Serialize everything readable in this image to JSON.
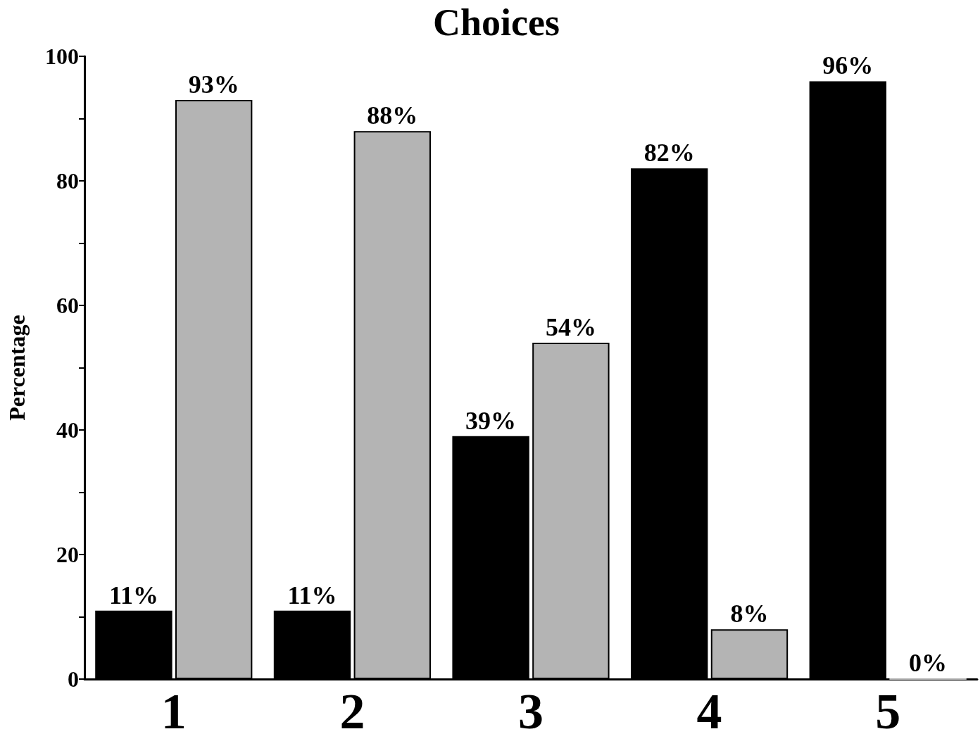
{
  "chart_data": {
    "type": "bar",
    "title": "Choices",
    "ylabel": "Percentage",
    "categories": [
      "1",
      "2",
      "3",
      "4",
      "5"
    ],
    "series": [
      {
        "color": "#000000",
        "values": [
          11,
          11,
          39,
          82,
          96
        ],
        "value_labels": [
          "11%",
          "11%",
          "39%",
          "82%",
          "96%"
        ]
      },
      {
        "color": "#b4b4b4",
        "values": [
          93,
          88,
          54,
          8,
          0
        ],
        "value_labels": [
          "93%",
          "88%",
          "54%",
          "8%",
          "0%"
        ]
      }
    ],
    "ylim": [
      0,
      100
    ],
    "yticks": [
      0,
      {
        "value": 10,
        "label": null
      },
      20,
      {
        "value": 30,
        "label": null
      },
      40,
      {
        "value": 50,
        "label": null
      },
      60,
      {
        "value": 70,
        "label": null
      },
      80,
      {
        "value": 90,
        "label": null
      },
      100
    ],
    "grid": false
  }
}
